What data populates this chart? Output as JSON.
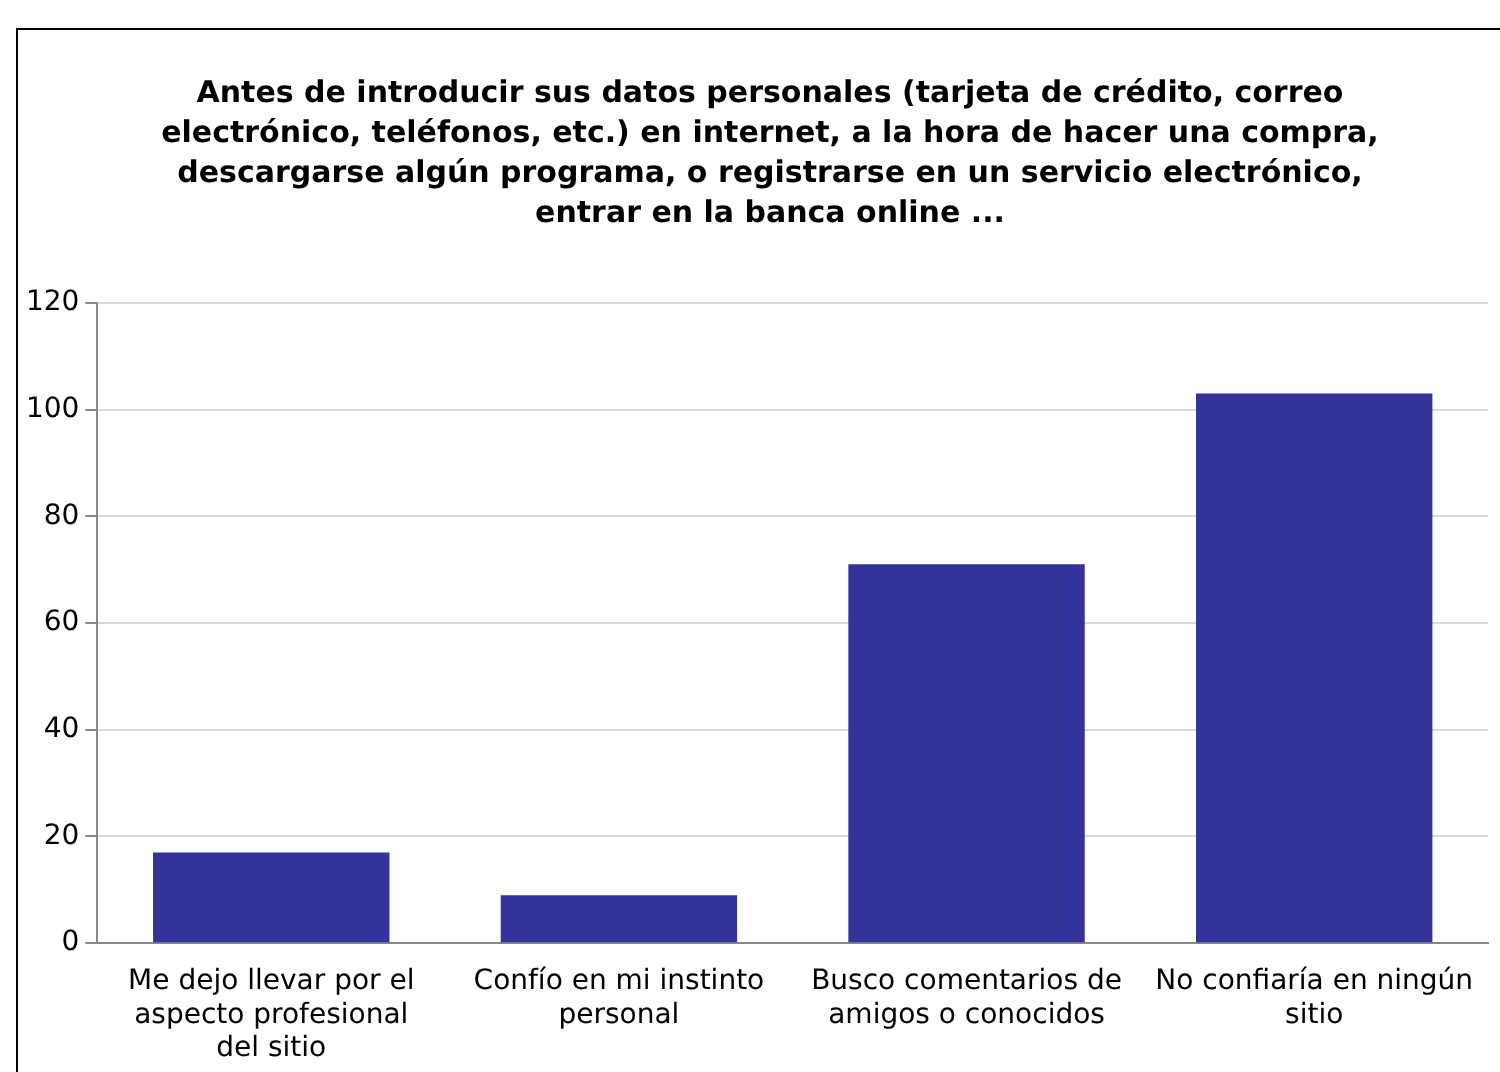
{
  "chart_data": {
    "type": "bar",
    "title": "Antes de introducir sus datos personales (tarjeta de crédito, correo electrónico, teléfonos, etc.) en internet, a la hora de hacer una compra, descargarse algún programa, o registrarse en un servicio electrónico, entrar en la banca online ...",
    "categories": [
      "Me dejo llevar por el aspecto profesional del sitio",
      "Confío en mi instinto personal",
      "Busco comentarios de amigos o conocidos",
      "No confiaría en ningún sitio"
    ],
    "values": [
      17,
      9,
      71,
      103
    ],
    "color": "#333399",
    "ylim": [
      0,
      120
    ],
    "yticks": [
      0,
      20,
      40,
      60,
      80,
      100,
      120
    ],
    "grid": "y",
    "legend": false
  }
}
